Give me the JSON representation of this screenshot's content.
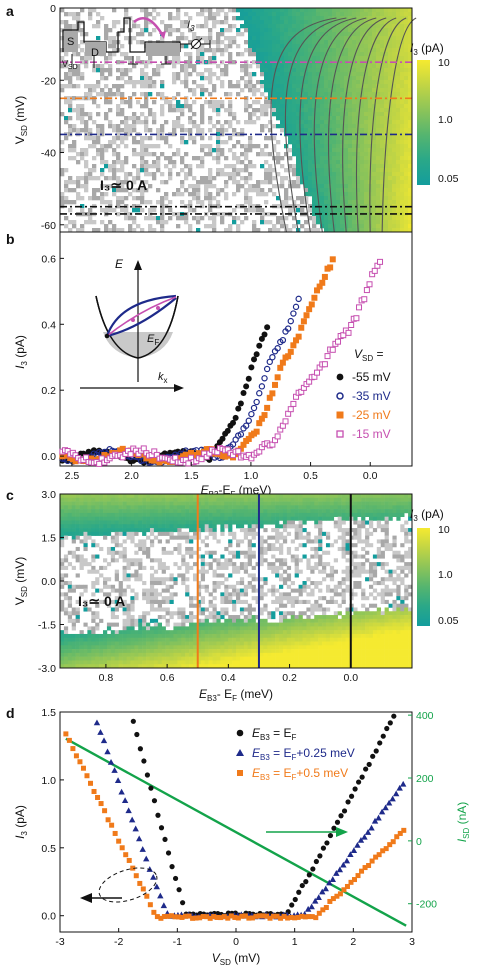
{
  "colors": {
    "colormap": [
      "#139d9d",
      "#2aa888",
      "#55b56f",
      "#8cc459",
      "#c2d544",
      "#f5ea30"
    ],
    "noise": "#c8c8c8",
    "black": "#111111",
    "navy": "#1e2a8a",
    "orange": "#f07a1a",
    "magenta": "#c64fb0",
    "green": "#13a34a",
    "contour": "#555555"
  },
  "panels": {
    "a": {
      "label": "a",
      "annotation": "I₃≃ 0 A",
      "ylabel": "V",
      "ylabel_sub": "SD",
      "ylabel_unit": " (mV)",
      "yticks": [
        "0",
        "-20",
        "-40",
        "-60"
      ],
      "colorbar_label": "I",
      "colorbar_label_sub": "3",
      "colorbar_label_unit": " (pA)",
      "colorbar_ticks": [
        "10",
        "1.0",
        "0.05"
      ],
      "inset": {
        "source": "S",
        "drain": "D",
        "vsd": "V",
        "vsd_sub": "SD",
        "current": "I",
        "current_sub": "3"
      }
    },
    "b": {
      "label": "b",
      "ylabel": "I",
      "ylabel_sub": "3",
      "ylabel_unit": " (pA)",
      "xlabel_main": "E",
      "xlabel_sub1": "B3",
      "xlabel_mid": "-E",
      "xlabel_sub2": "F",
      "xlabel_unit": " (meV)",
      "xticks": [
        "2.5",
        "2.0",
        "1.5",
        "1.0",
        "0.5",
        "0.0"
      ],
      "yticks": [
        "0.0",
        "0.2",
        "0.4",
        "0.6"
      ],
      "legend_title": "V",
      "legend_title_sub": "SD",
      "legend_title_eq": " =",
      "inset": {
        "energy": "E",
        "fermi": "E",
        "fermi_sub": "F",
        "momentum": "k",
        "momentum_sub": "x"
      }
    },
    "c": {
      "label": "c",
      "annotation": "I₃≃ 0 A",
      "ylabel": "V",
      "ylabel_sub": "SD",
      "ylabel_unit": " (mV)",
      "yticks": [
        "3.0",
        "1.5",
        "0.0",
        "-1.5",
        "-3.0"
      ],
      "xticks": [
        "0.8",
        "0.6",
        "0.4",
        "0.2",
        "0.0"
      ],
      "xlabel_main": "E",
      "xlabel_sub1": "B3",
      "xlabel_mid": "- E",
      "xlabel_sub2": "F",
      "xlabel_unit": " (meV)",
      "colorbar_label": "I",
      "colorbar_label_sub": "3",
      "colorbar_label_unit": " (pA)",
      "colorbar_ticks": [
        "10",
        "1.0",
        "0.05"
      ]
    },
    "d": {
      "label": "d",
      "ylabel": "I",
      "ylabel_sub": "3",
      "ylabel_unit": " (pA)",
      "y2label": "I",
      "y2label_sub": "SD",
      "y2label_unit": " (nA)",
      "xlabel": "V",
      "xlabel_sub": "SD",
      "xlabel_unit": " (mV)",
      "xticks": [
        "-3",
        "-2",
        "-1",
        "0",
        "1",
        "2",
        "3"
      ],
      "yticks": [
        "0.0",
        "0.5",
        "1.0",
        "1.5"
      ],
      "y2ticks": [
        "400",
        "200",
        "0",
        "-200"
      ],
      "legend": [
        {
          "main": "E",
          "sub": "B3",
          "eq": " = E",
          "sub2": "F",
          "rest": ""
        },
        {
          "main": "E",
          "sub": "B3",
          "eq": " = E",
          "sub2": "F",
          "rest": "+0.25 meV"
        },
        {
          "main": "E",
          "sub": "B3",
          "eq": " = E",
          "sub2": "F",
          "rest": "+0.5 meV"
        }
      ]
    }
  },
  "chart_data": [
    {
      "panel": "a",
      "type": "heatmap",
      "ylabel": "VSD (mV)",
      "ylim": [
        -62,
        0
      ],
      "colorbar_range_pA": [
        0.05,
        10
      ],
      "cuts_mV": [
        {
          "v": -15,
          "color": "magenta"
        },
        {
          "v": -25,
          "color": "orange"
        },
        {
          "v": -35,
          "color": "navy"
        },
        {
          "v": -55,
          "color": "black"
        },
        {
          "v": -57,
          "color": "black"
        }
      ]
    },
    {
      "panel": "b",
      "type": "scatter",
      "xlabel": "EB3-EF (meV)",
      "ylabel": "I3 (pA)",
      "xlim": [
        2.6,
        -0.35
      ],
      "ylim": [
        -0.03,
        0.68
      ],
      "series": [
        {
          "name": "-55 mV",
          "color": "black",
          "marker": "filled-circle",
          "onset": 1.35,
          "scale": 0.92,
          "end": 0.85,
          "wobble": 0.006
        },
        {
          "name": "-35 mV",
          "color": "navy",
          "marker": "open-circle",
          "onset": 1.25,
          "scale": 0.8,
          "end": 0.6,
          "wobble": 0.007
        },
        {
          "name": "-25 mV",
          "color": "orange",
          "marker": "filled-square",
          "onset": 1.15,
          "scale": 0.77,
          "end": 0.3,
          "wobble": 0.008
        },
        {
          "name": "-15 mV",
          "color": "magenta",
          "marker": "open-square",
          "onset": 1.0,
          "scale": 0.52,
          "end": -0.1,
          "wobble": 0.01
        }
      ]
    },
    {
      "panel": "c",
      "type": "heatmap",
      "xlabel": "EB3 - EF (meV)",
      "ylabel": "VSD (mV)",
      "xlim": [
        0.95,
        -0.2
      ],
      "ylim": [
        -3.0,
        3.0
      ],
      "colorbar_range_pA": [
        0.05,
        10
      ],
      "cuts_meV": [
        {
          "x": 0.5,
          "color": "orange"
        },
        {
          "x": 0.3,
          "color": "navy"
        },
        {
          "x": 0.0,
          "color": "black"
        }
      ]
    },
    {
      "panel": "d",
      "type": "scatter",
      "xlabel": "VSD (mV)",
      "ylabel": "I3 (pA)",
      "y2label": "ISD (nA)",
      "xlim": [
        -3,
        3
      ],
      "ylim": [
        -0.12,
        1.5
      ],
      "y2lim": [
        -290,
        410
      ],
      "isd_line": {
        "x": [
          -2.9,
          2.9
        ],
        "y": [
          325,
          -270
        ],
        "color": "green"
      },
      "series": [
        {
          "name": "EB3 = EF",
          "color": "black",
          "marker": "circle",
          "x_from": -2.05,
          "threshold": 0.85,
          "x_to": 2.9,
          "k": 1.1,
          "p": 1.05,
          "base": 0.01
        },
        {
          "name": "EB3 = EF+0.25 meV",
          "color": "navy",
          "marker": "triangle",
          "x_from": -2.85,
          "threshold": 1.15,
          "x_to": 2.9,
          "k": 0.8,
          "p": 1.05,
          "base": 0.0
        },
        {
          "name": "EB3 = EF+0.5 meV",
          "color": "orange",
          "marker": "square",
          "x_from": -2.9,
          "threshold": 1.35,
          "x_to": 2.9,
          "k": 0.6,
          "p": 1.0,
          "base": -0.01
        }
      ]
    }
  ]
}
